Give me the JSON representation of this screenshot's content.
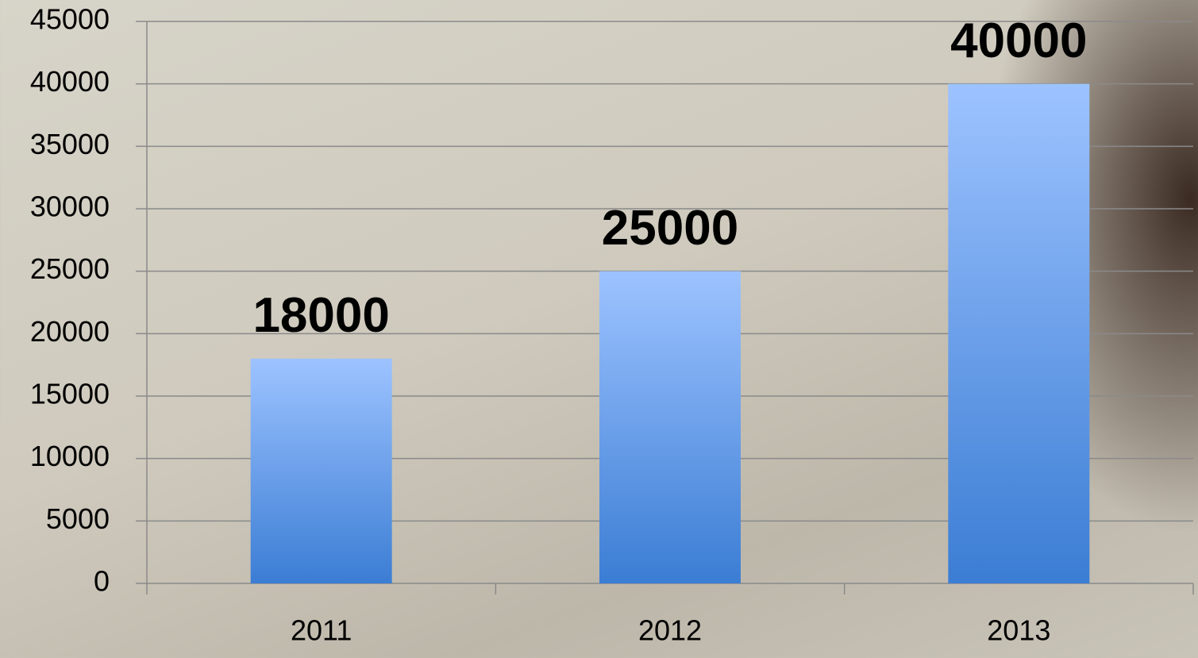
{
  "chart_data": {
    "type": "bar",
    "categories": [
      "2011",
      "2012",
      "2013"
    ],
    "values": [
      18000,
      25000,
      40000
    ],
    "gradient": [
      "#9dc3ff",
      "#3b7dd4"
    ],
    "ylim": [
      0,
      45000
    ],
    "yticks": [
      0,
      5000,
      10000,
      15000,
      20000,
      25000,
      30000,
      35000,
      40000,
      45000
    ],
    "grid": true,
    "data_labels": true
  }
}
